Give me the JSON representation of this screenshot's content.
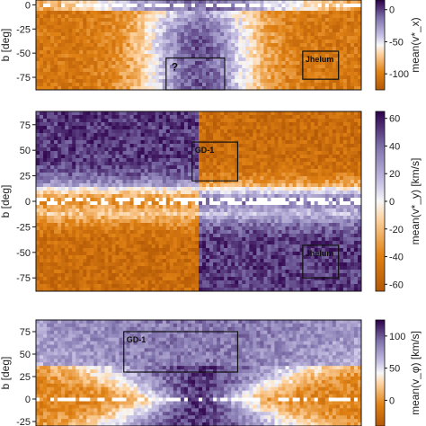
{
  "chart_data": [
    {
      "type": "heatmap",
      "ylabel": "b [deg]",
      "ylim": [
        -88,
        5
      ],
      "y_ticks": [
        0,
        -25,
        -50,
        -75
      ],
      "colorbar": {
        "label": "mean(v*_x)",
        "ticks": [
          0,
          -50,
          -100
        ],
        "range": [
          -125,
          15
        ]
      },
      "boxes": [
        {
          "label": "?",
          "l_range": [
            0.4,
            0.58
          ],
          "b_range": [
            -88,
            -55
          ]
        },
        {
          "label": "Jhelum",
          "l_range": [
            0.82,
            0.93
          ],
          "b_range": [
            -77,
            -48
          ]
        }
      ]
    },
    {
      "type": "heatmap",
      "ylabel": "b [deg]",
      "ylim": [
        -88,
        88
      ],
      "y_ticks": [
        75,
        50,
        25,
        0,
        -25,
        -50,
        -75
      ],
      "colorbar": {
        "label": "mean(v*_y) [km/s]",
        "ticks": [
          60,
          40,
          20,
          0,
          -20,
          -40,
          -60
        ],
        "range": [
          -65,
          65
        ]
      },
      "boxes": [
        {
          "label": "GD-1",
          "l_range": [
            0.48,
            0.62
          ],
          "b_range": [
            20,
            58
          ]
        },
        {
          "label": "Jhelum",
          "l_range": [
            0.82,
            0.93
          ],
          "b_range": [
            -75,
            -43
          ]
        }
      ]
    },
    {
      "type": "heatmap",
      "ylabel": "b [deg]",
      "ylim": [
        -30,
        88
      ],
      "y_ticks": [
        75,
        50,
        25,
        0,
        -25
      ],
      "colorbar": {
        "label": "mean(v_φ) [km/s]",
        "ticks": [
          100,
          50,
          0
        ],
        "range": [
          -40,
          125
        ]
      },
      "boxes": [
        {
          "label": "GD-1",
          "l_range": [
            0.27,
            0.62
          ],
          "b_range": [
            30,
            75
          ]
        }
      ]
    }
  ]
}
